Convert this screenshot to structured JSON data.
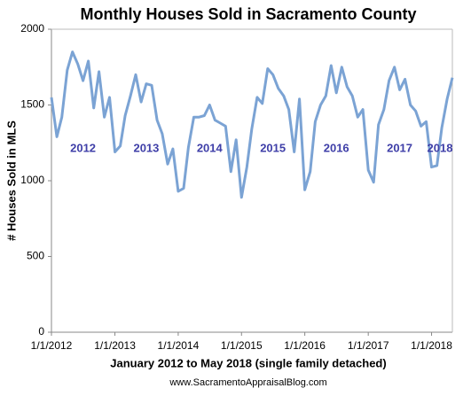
{
  "chart_data": {
    "type": "line",
    "title": "Monthly Houses Sold in Sacramento County",
    "x_label": "January 2012 to May 2018 (single family detached)",
    "y_label": "# Houses Sold in MLS",
    "source": "www.SacramentoAppraisalBlog.com",
    "annotations": [
      "2012",
      "2013",
      "2014",
      "2015",
      "2016",
      "2017",
      "2018"
    ],
    "x": [
      "1/1/2012",
      "2/1/2012",
      "3/1/2012",
      "4/1/2012",
      "5/1/2012",
      "6/1/2012",
      "7/1/2012",
      "8/1/2012",
      "9/1/2012",
      "10/1/2012",
      "11/1/2012",
      "12/1/2012",
      "1/1/2013",
      "2/1/2013",
      "3/1/2013",
      "4/1/2013",
      "5/1/2013",
      "6/1/2013",
      "7/1/2013",
      "8/1/2013",
      "9/1/2013",
      "10/1/2013",
      "11/1/2013",
      "12/1/2013",
      "1/1/2014",
      "2/1/2014",
      "3/1/2014",
      "4/1/2014",
      "5/1/2014",
      "6/1/2014",
      "7/1/2014",
      "8/1/2014",
      "9/1/2014",
      "10/1/2014",
      "11/1/2014",
      "12/1/2014",
      "1/1/2015",
      "2/1/2015",
      "3/1/2015",
      "4/1/2015",
      "5/1/2015",
      "6/1/2015",
      "7/1/2015",
      "8/1/2015",
      "9/1/2015",
      "10/1/2015",
      "11/1/2015",
      "12/1/2015",
      "1/1/2016",
      "2/1/2016",
      "3/1/2016",
      "4/1/2016",
      "5/1/2016",
      "6/1/2016",
      "7/1/2016",
      "8/1/2016",
      "9/1/2016",
      "10/1/2016",
      "11/1/2016",
      "12/1/2016",
      "1/1/2017",
      "2/1/2017",
      "3/1/2017",
      "4/1/2017",
      "5/1/2017",
      "6/1/2017",
      "7/1/2017",
      "8/1/2017",
      "9/1/2017",
      "10/1/2017",
      "11/1/2017",
      "12/1/2017",
      "1/1/2018",
      "2/1/2018",
      "3/1/2018",
      "4/1/2018",
      "5/1/2018"
    ],
    "series": [
      {
        "name": "Houses Sold",
        "color": "#7ba3d4",
        "values": [
          1550,
          1290,
          1420,
          1730,
          1850,
          1770,
          1660,
          1790,
          1480,
          1720,
          1420,
          1550,
          1190,
          1230,
          1430,
          1560,
          1700,
          1520,
          1640,
          1630,
          1400,
          1310,
          1110,
          1210,
          930,
          950,
          1220,
          1420,
          1420,
          1430,
          1500,
          1400,
          1380,
          1360,
          1060,
          1270,
          890,
          1090,
          1340,
          1550,
          1510,
          1740,
          1700,
          1610,
          1560,
          1470,
          1190,
          1540,
          940,
          1060,
          1390,
          1500,
          1560,
          1760,
          1580,
          1750,
          1620,
          1560,
          1420,
          1470,
          1070,
          990,
          1370,
          1470,
          1660,
          1750,
          1600,
          1670,
          1500,
          1460,
          1360,
          1390,
          1090,
          1100,
          1350,
          1540,
          1680
        ]
      }
    ],
    "xlim": [
      "1/1/2012",
      "5/1/2018"
    ],
    "xticks": [
      "1/1/2012",
      "1/1/2013",
      "1/1/2014",
      "1/1/2015",
      "1/1/2016",
      "1/1/2017",
      "1/1/2018"
    ],
    "ylim": [
      0,
      2000
    ],
    "yticks": [
      0,
      500,
      1000,
      1500,
      2000
    ],
    "grid": false
  }
}
